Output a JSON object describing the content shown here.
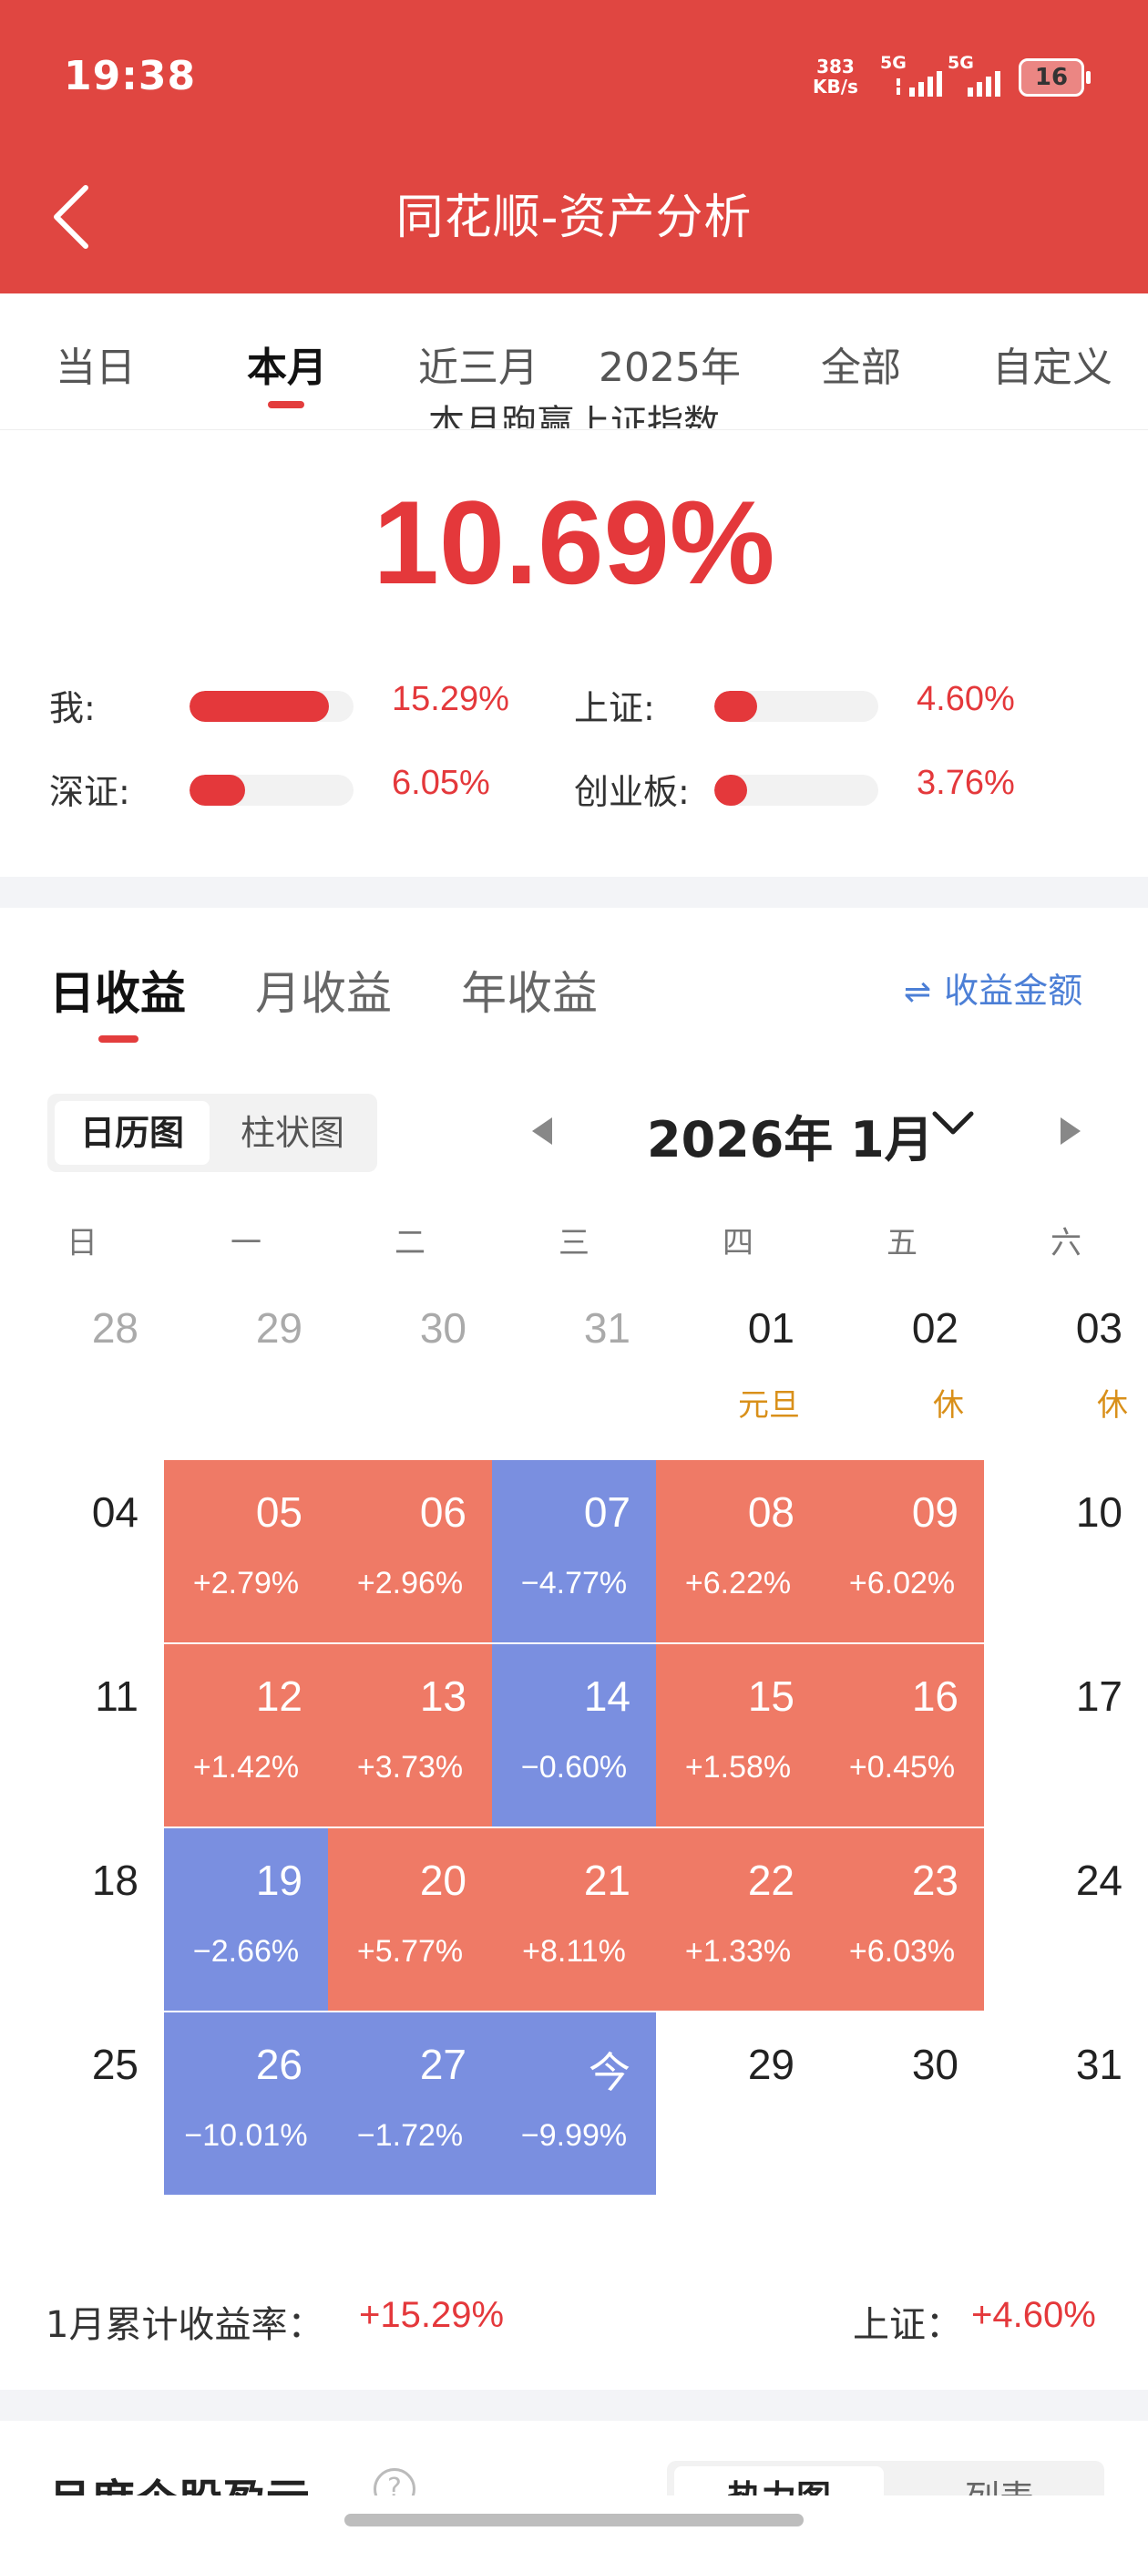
{
  "status": {
    "time": "19:38",
    "net_speed_value": "383",
    "net_speed_unit": "KB/s",
    "signal1": "5G",
    "signal2": "5G",
    "battery": "16"
  },
  "header": {
    "title": "同花顺-资产分析"
  },
  "period_tabs": [
    "当日",
    "本月",
    "近三月",
    "2025年",
    "全部",
    "自定义"
  ],
  "summary": {
    "partial_heading": "本月跑赢上证指数",
    "outperform": "10.69%",
    "comparisons": [
      {
        "label": "我:",
        "value": "15.29%",
        "level": 0.85
      },
      {
        "label": "上证:",
        "value": "4.60%",
        "level": 0.26
      },
      {
        "label": "深证:",
        "value": "6.05%",
        "level": 0.34
      },
      {
        "label": "创业板:",
        "value": "3.76%",
        "level": 0.2
      }
    ]
  },
  "earnings_tabs": [
    "日收益",
    "月收益",
    "年收益"
  ],
  "amount_toggle": "收益金额",
  "view_switch": [
    "日历图",
    "柱状图"
  ],
  "month_title": "2026年 1月",
  "weekdays": [
    "日",
    "一",
    "二",
    "三",
    "四",
    "五",
    "六"
  ],
  "calendar": [
    [
      {
        "d": "28",
        "s": "dim"
      },
      {
        "d": "29",
        "s": "dim"
      },
      {
        "d": "30",
        "s": "dim"
      },
      {
        "d": "31",
        "s": "dim"
      },
      {
        "d": "01",
        "tag": "元旦"
      },
      {
        "d": "02",
        "tag": "休"
      },
      {
        "d": "03",
        "tag": "休"
      }
    ],
    [
      {
        "d": "04"
      },
      {
        "d": "05",
        "p": "+2.79%",
        "s": "up"
      },
      {
        "d": "06",
        "p": "+2.96%",
        "s": "up"
      },
      {
        "d": "07",
        "p": "−4.77%",
        "s": "down"
      },
      {
        "d": "08",
        "p": "+6.22%",
        "s": "up"
      },
      {
        "d": "09",
        "p": "+6.02%",
        "s": "up"
      },
      {
        "d": "10"
      }
    ],
    [
      {
        "d": "11"
      },
      {
        "d": "12",
        "p": "+1.42%",
        "s": "up"
      },
      {
        "d": "13",
        "p": "+3.73%",
        "s": "up"
      },
      {
        "d": "14",
        "p": "−0.60%",
        "s": "down"
      },
      {
        "d": "15",
        "p": "+1.58%",
        "s": "up"
      },
      {
        "d": "16",
        "p": "+0.45%",
        "s": "up"
      },
      {
        "d": "17"
      }
    ],
    [
      {
        "d": "18"
      },
      {
        "d": "19",
        "p": "−2.66%",
        "s": "down"
      },
      {
        "d": "20",
        "p": "+5.77%",
        "s": "up"
      },
      {
        "d": "21",
        "p": "+8.11%",
        "s": "up"
      },
      {
        "d": "22",
        "p": "+1.33%",
        "s": "up"
      },
      {
        "d": "23",
        "p": "+6.03%",
        "s": "up"
      },
      {
        "d": "24"
      }
    ],
    [
      {
        "d": "25"
      },
      {
        "d": "26",
        "p": "−10.01%",
        "s": "down"
      },
      {
        "d": "27",
        "p": "−1.72%",
        "s": "down"
      },
      {
        "d": "今",
        "p": "−9.99%",
        "s": "down"
      },
      {
        "d": "29"
      },
      {
        "d": "30"
      },
      {
        "d": "31"
      }
    ]
  ],
  "cumulative": {
    "label": "1月累计收益率：",
    "value": "+15.29%",
    "index_label": "上证：",
    "index_value": "+4.60%"
  },
  "bottom_section": {
    "title": "月度个股盈亏",
    "help_icon": "?",
    "views": [
      "热力图",
      "列表"
    ]
  },
  "colors": {
    "header": "#e04641",
    "profit_cell": "#ef7a66",
    "loss_cell": "#7a8fe0",
    "accent_red": "#e4383b",
    "link_blue": "#4c7fd6",
    "holiday_tag": "#d9901a"
  }
}
